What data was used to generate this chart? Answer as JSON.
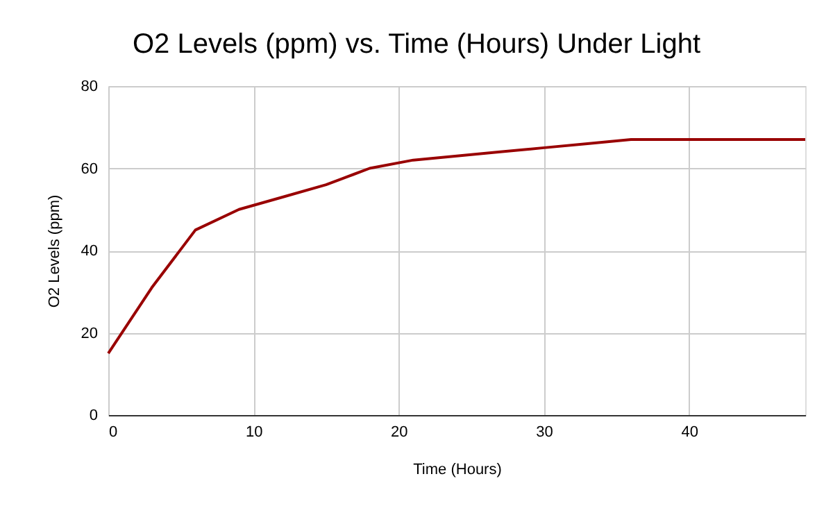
{
  "chart_data": {
    "type": "line",
    "title": "O2 Levels (ppm) vs. Time (Hours) Under Light",
    "xlabel": "Time (Hours)",
    "ylabel": "O2 Levels (ppm)",
    "x": [
      0,
      3,
      6,
      9,
      12,
      15,
      18,
      21,
      24,
      27,
      30,
      33,
      36,
      39,
      42,
      45,
      48
    ],
    "series": [
      {
        "color": "#990000",
        "values": [
          15,
          31,
          45,
          50,
          53,
          56,
          60,
          62,
          63,
          64,
          65,
          66,
          67,
          67,
          67,
          67,
          67
        ]
      }
    ],
    "xlim": [
      0,
      48
    ],
    "xticks": [
      0,
      10,
      20,
      30,
      40
    ],
    "ylim": [
      0,
      80
    ],
    "yticks": [
      0,
      20,
      40,
      60,
      80
    ],
    "grid": true,
    "marker": "none",
    "line_style": "solid"
  }
}
